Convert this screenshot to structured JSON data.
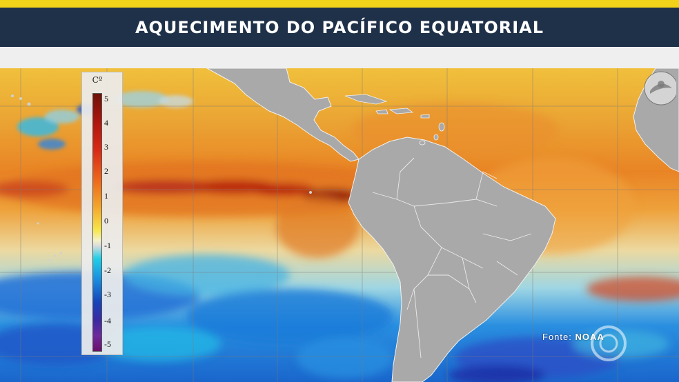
{
  "header": {
    "title": "AQUECIMENTO DO PACÍFICO EQUATORIAL",
    "accent_color": "#f3d21a",
    "bar_color": "#1f3149"
  },
  "legend": {
    "unit": "Cº",
    "ticks": [
      "5",
      "4",
      "3",
      "2",
      "1",
      "0",
      "-1",
      "-2",
      "-3",
      "-4",
      "-5"
    ]
  },
  "source": {
    "label": "Fonte:",
    "value": "NOAA"
  },
  "map": {
    "type": "sea surface temperature anomaly",
    "colors": {
      "warm": "#e8901e",
      "hot": "#b3170f",
      "neutral": "#d9d3bf",
      "cool": "#22b9e6",
      "cold": "#1744b9",
      "land": "#a9a9a9"
    }
  },
  "icons": {
    "logo": "noaa-logo-icon",
    "watermark": "broadcaster-watermark-icon"
  }
}
